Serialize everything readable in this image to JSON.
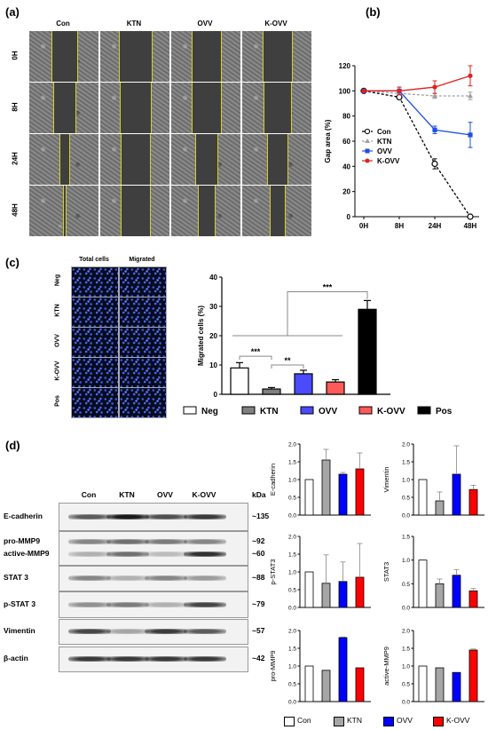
{
  "panels": {
    "a": "(a)",
    "b": "(b)",
    "c": "(c)",
    "d": "(d)"
  },
  "panel_a": {
    "columns": [
      "Con",
      "KTN",
      "OVV",
      "K-OVV"
    ],
    "rows": [
      "0H",
      "8H",
      "24H",
      "48H"
    ],
    "gap_widths": [
      [
        0.35,
        0.45,
        0.42,
        0.4
      ],
      [
        0.3,
        0.44,
        0.42,
        0.38
      ],
      [
        0.12,
        0.4,
        0.3,
        0.28
      ],
      [
        0.02,
        0.4,
        0.22,
        0.2
      ]
    ]
  },
  "panel_c_images": {
    "columns": [
      "Total cells",
      "Migrated"
    ],
    "rows": [
      "Neg",
      "KTN",
      "OVV",
      "K-OVV",
      "Pos"
    ]
  },
  "western_blot": {
    "lanes": [
      "Con",
      "KTN",
      "OVV",
      "K-OVV"
    ],
    "kda_header": "kDa",
    "rows": [
      {
        "label": "E-cadherin",
        "kda": "~135"
      },
      {
        "label": "pro-MMP9",
        "kda": "~92"
      },
      {
        "label": "active-MMP9",
        "kda": "~60"
      },
      {
        "label": "STAT 3",
        "kda": "~88"
      },
      {
        "label": "p-STAT 3",
        "kda": "~79"
      },
      {
        "label": "Vimentin",
        "kda": "~57"
      },
      {
        "label": "β-actin",
        "kda": "~42"
      }
    ]
  },
  "colors": {
    "con": "#ffffff",
    "ktn": "#a6a6a6",
    "ovv": "#0000ff",
    "kovv": "#ff0000",
    "neg": "#ffffff",
    "ktn_c": "#808080",
    "ovv_c": "#4a4aff",
    "kovv_c": "#ff5a5a",
    "pos": "#000000"
  },
  "chart_data": [
    {
      "id": "gap-area",
      "type": "line",
      "x": [
        "0H",
        "8H",
        "24H",
        "48H"
      ],
      "ylabel": "Gap area (%)",
      "ylim": [
        0,
        120
      ],
      "yticks": [
        0,
        20,
        40,
        60,
        80,
        100,
        120
      ],
      "legend": "middle-left",
      "series": [
        {
          "name": "Con",
          "values": [
            100,
            95,
            42,
            0
          ],
          "err": [
            0,
            1,
            4,
            0
          ],
          "color": "#000000",
          "marker": "open-circle",
          "dashed": true
        },
        {
          "name": "KTN",
          "values": [
            100,
            98,
            96,
            96
          ],
          "err": [
            0,
            1,
            2,
            3
          ],
          "color": "#a0a0a0",
          "marker": "triangle",
          "dashed": true
        },
        {
          "name": "OVV",
          "values": [
            100,
            100,
            69,
            65
          ],
          "err": [
            0,
            3,
            3,
            10
          ],
          "color": "#1f4fe0",
          "marker": "square",
          "dashed": false
        },
        {
          "name": "K-OVV",
          "values": [
            100,
            100,
            103,
            112
          ],
          "err": [
            0,
            3,
            5,
            8
          ],
          "color": "#e0201f",
          "marker": "circle",
          "dashed": false
        }
      ]
    },
    {
      "id": "migrated-cells",
      "type": "bar",
      "categories": [
        "Neg",
        "KTN",
        "OVV",
        "K-OVV",
        "Pos"
      ],
      "values": [
        9,
        1.8,
        7,
        4.2,
        29
      ],
      "err": [
        1.8,
        0.5,
        1.2,
        0.8,
        3
      ],
      "ylabel": "Migrated cells (%)",
      "ylim": [
        0,
        40
      ],
      "yticks": [
        0,
        10,
        20,
        30,
        40
      ],
      "significance": [
        "***",
        "**",
        "***"
      ],
      "legend": "bottom"
    },
    {
      "id": "e-cadherin",
      "type": "bar",
      "ylabel": "E-cadherin",
      "categories": [
        "Con",
        "KTN",
        "OVV",
        "K-OVV"
      ],
      "values": [
        1.0,
        1.55,
        1.15,
        1.3
      ],
      "err": [
        0,
        0.3,
        0.05,
        0.45
      ],
      "ylim": [
        0,
        2.0
      ],
      "yticks": [
        "0.0",
        "0.5",
        "1.0",
        "1.5",
        "2.0"
      ]
    },
    {
      "id": "vimentin",
      "type": "bar",
      "ylabel": "Vimentin",
      "categories": [
        "Con",
        "KTN",
        "OVV",
        "K-OVV"
      ],
      "values": [
        1.0,
        0.4,
        1.15,
        0.72
      ],
      "err": [
        0,
        0.25,
        0.8,
        0.12
      ],
      "ylim": [
        0,
        2.0
      ],
      "yticks": [
        "0.0",
        "0.5",
        "1.0",
        "1.5",
        "2.0"
      ]
    },
    {
      "id": "p-stat3",
      "type": "bar",
      "ylabel": "p-STAT3",
      "categories": [
        "Con",
        "KTN",
        "OVV",
        "K-OVV"
      ],
      "values": [
        1.0,
        0.68,
        0.73,
        0.85
      ],
      "err": [
        0,
        0.8,
        0.55,
        0.95
      ],
      "ylim": [
        0,
        2.0
      ],
      "yticks": [
        "0.0",
        "0.5",
        "1.0",
        "1.5",
        "2.0"
      ]
    },
    {
      "id": "stat3",
      "type": "bar",
      "ylabel": "STAT3",
      "categories": [
        "Con",
        "KTN",
        "OVV",
        "K-OVV"
      ],
      "values": [
        1.0,
        0.5,
        0.68,
        0.35
      ],
      "err": [
        0,
        0.1,
        0.12,
        0.05
      ],
      "ylim": [
        0,
        1.5
      ],
      "yticks": [
        "0.0",
        "0.5",
        "1.0",
        "1.5"
      ]
    },
    {
      "id": "pro-mmp9",
      "type": "bar",
      "ylabel": "pro-MMP9",
      "categories": [
        "Con",
        "KTN",
        "OVV",
        "K-OVV"
      ],
      "values": [
        1.0,
        0.88,
        1.8,
        0.95
      ],
      "err": [
        0,
        0,
        0.02,
        0
      ],
      "ylim": [
        0,
        2.0
      ],
      "yticks": [
        "0.0",
        "0.5",
        "1.0",
        "1.5",
        "2.0"
      ]
    },
    {
      "id": "active-mmp9",
      "type": "bar",
      "ylabel": "active-MMP9",
      "categories": [
        "Con",
        "KTN",
        "OVV",
        "K-OVV"
      ],
      "values": [
        1.0,
        0.95,
        0.82,
        1.45
      ],
      "err": [
        0,
        0,
        0,
        0.03
      ],
      "ylim": [
        0,
        2.0
      ],
      "yticks": [
        "0.0",
        "0.5",
        "1.0",
        "1.5",
        "2.0"
      ]
    }
  ],
  "legend_d": [
    "Con",
    "KTN",
    "OVV",
    "K-OVV"
  ]
}
